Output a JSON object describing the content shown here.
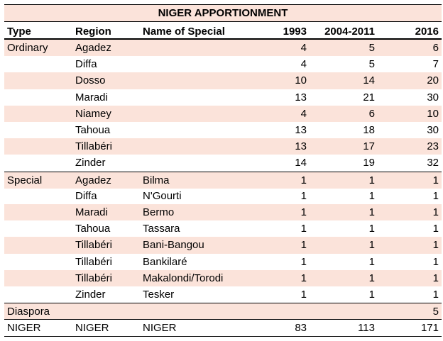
{
  "title": "NIGER APPORTIONMENT",
  "headers": {
    "type": "Type",
    "region": "Region",
    "name": "Name of Special",
    "y1993": "1993",
    "y2004": "2004-2011",
    "y2016": "2016"
  },
  "rows": [
    {
      "type": "Ordinary",
      "region": "Agadez",
      "name": "",
      "y1993": "4",
      "y2004": "5",
      "y2016": "6"
    },
    {
      "type": "",
      "region": "Diffa",
      "name": "",
      "y1993": "4",
      "y2004": "5",
      "y2016": "7"
    },
    {
      "type": "",
      "region": "Dosso",
      "name": "",
      "y1993": "10",
      "y2004": "14",
      "y2016": "20"
    },
    {
      "type": "",
      "region": "Maradi",
      "name": "",
      "y1993": "13",
      "y2004": "21",
      "y2016": "30"
    },
    {
      "type": "",
      "region": "Niamey",
      "name": "",
      "y1993": "4",
      "y2004": "6",
      "y2016": "10"
    },
    {
      "type": "",
      "region": "Tahoua",
      "name": "",
      "y1993": "13",
      "y2004": "18",
      "y2016": "30"
    },
    {
      "type": "",
      "region": "Tillabéri",
      "name": "",
      "y1993": "13",
      "y2004": "17",
      "y2016": "23"
    },
    {
      "type": "",
      "region": "Zinder",
      "name": "",
      "y1993": "14",
      "y2004": "19",
      "y2016": "32"
    },
    {
      "type": "Special",
      "region": "Agadez",
      "name": "Bilma",
      "y1993": "1",
      "y2004": "1",
      "y2016": "1"
    },
    {
      "type": "",
      "region": "Diffa",
      "name": "N'Gourti",
      "y1993": "1",
      "y2004": "1",
      "y2016": "1"
    },
    {
      "type": "",
      "region": "Maradi",
      "name": "Bermo",
      "y1993": "1",
      "y2004": "1",
      "y2016": "1"
    },
    {
      "type": "",
      "region": "Tahoua",
      "name": "Tassara",
      "y1993": "1",
      "y2004": "1",
      "y2016": "1"
    },
    {
      "type": "",
      "region": "Tillabéri",
      "name": "Bani-Bangou",
      "y1993": "1",
      "y2004": "1",
      "y2016": "1"
    },
    {
      "type": "",
      "region": "Tillabéri",
      "name": "Bankilaré",
      "y1993": "1",
      "y2004": "1",
      "y2016": "1"
    },
    {
      "type": "",
      "region": "Tillabéri",
      "name": "Makalondi/Torodi",
      "y1993": "1",
      "y2004": "1",
      "y2016": "1"
    },
    {
      "type": "",
      "region": "Zinder",
      "name": "Tesker",
      "y1993": "1",
      "y2004": "1",
      "y2016": "1"
    },
    {
      "type": "Diaspora",
      "region": "",
      "name": "",
      "y1993": "",
      "y2004": "",
      "y2016": "5"
    },
    {
      "type": "NIGER",
      "region": "NIGER",
      "name": "NIGER",
      "y1993": "83",
      "y2004": "113",
      "y2016": "171"
    }
  ],
  "colors": {
    "shade": "#fbe3da",
    "rule": "#000000"
  }
}
